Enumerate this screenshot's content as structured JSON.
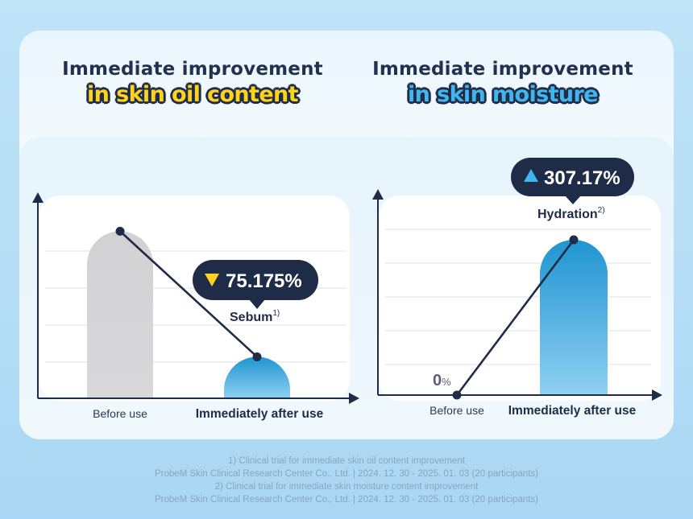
{
  "colors": {
    "navy": "#1f2c47",
    "before_bar": "#d4d4d6",
    "after_bar_top": "#1f95d1",
    "after_bar_bottom": "#8fd0f2",
    "highlight_yellow": "#ffd21f",
    "highlight_blue": "#41b6ee"
  },
  "left_panel": {
    "title_line1": "Immediate improvement",
    "title_line2": "in skin oil content",
    "callout": {
      "arrow_icon": "yellow-down-triangle-icon",
      "value_text": "75.175%"
    },
    "metric_label": "Sebum",
    "metric_sup": "1)"
  },
  "right_panel": {
    "title_line1": "Immediate improvement",
    "title_line2": "in skin moisture",
    "callout": {
      "arrow_icon": "blue-up-triangle-icon",
      "value_text": "307.17%"
    },
    "metric_label": "Hydration",
    "metric_sup": "2)",
    "zero_label": "0",
    "zero_unit": "%"
  },
  "chart_data": [
    {
      "type": "bar",
      "categories": [
        "Before use",
        "Immediately after use"
      ],
      "values": [
        100,
        24.825
      ],
      "change_percent": -75.175,
      "title": "Immediate improvement in skin oil content",
      "series": [
        {
          "name": "Sebum",
          "values": [
            100,
            24.825
          ]
        }
      ],
      "ylim": [
        0,
        118
      ],
      "grid": true
    },
    {
      "type": "bar",
      "categories": [
        "Before use",
        "Immediately after use"
      ],
      "values": [
        0,
        307.17
      ],
      "change_percent": 307.17,
      "title": "Immediate improvement in skin moisture",
      "series": [
        {
          "name": "Hydration",
          "values": [
            0,
            307.17
          ]
        }
      ],
      "ylim": [
        0,
        390
      ],
      "grid": true
    }
  ],
  "footnotes": [
    "1) Clinical trial for immediate skin oil content improvement",
    "ProbeM Skin Clinical Research Center  Co., Ltd. | 2024. 12. 30 - 2025. 01. 03 (20 participants)",
    "2) Clinical trial for immediate skin moisture content improvement",
    "ProbeM Skin Clinical Research Center Co., Ltd. | 2024. 12. 30 -  2025. 01. 03 (20 participants)"
  ]
}
